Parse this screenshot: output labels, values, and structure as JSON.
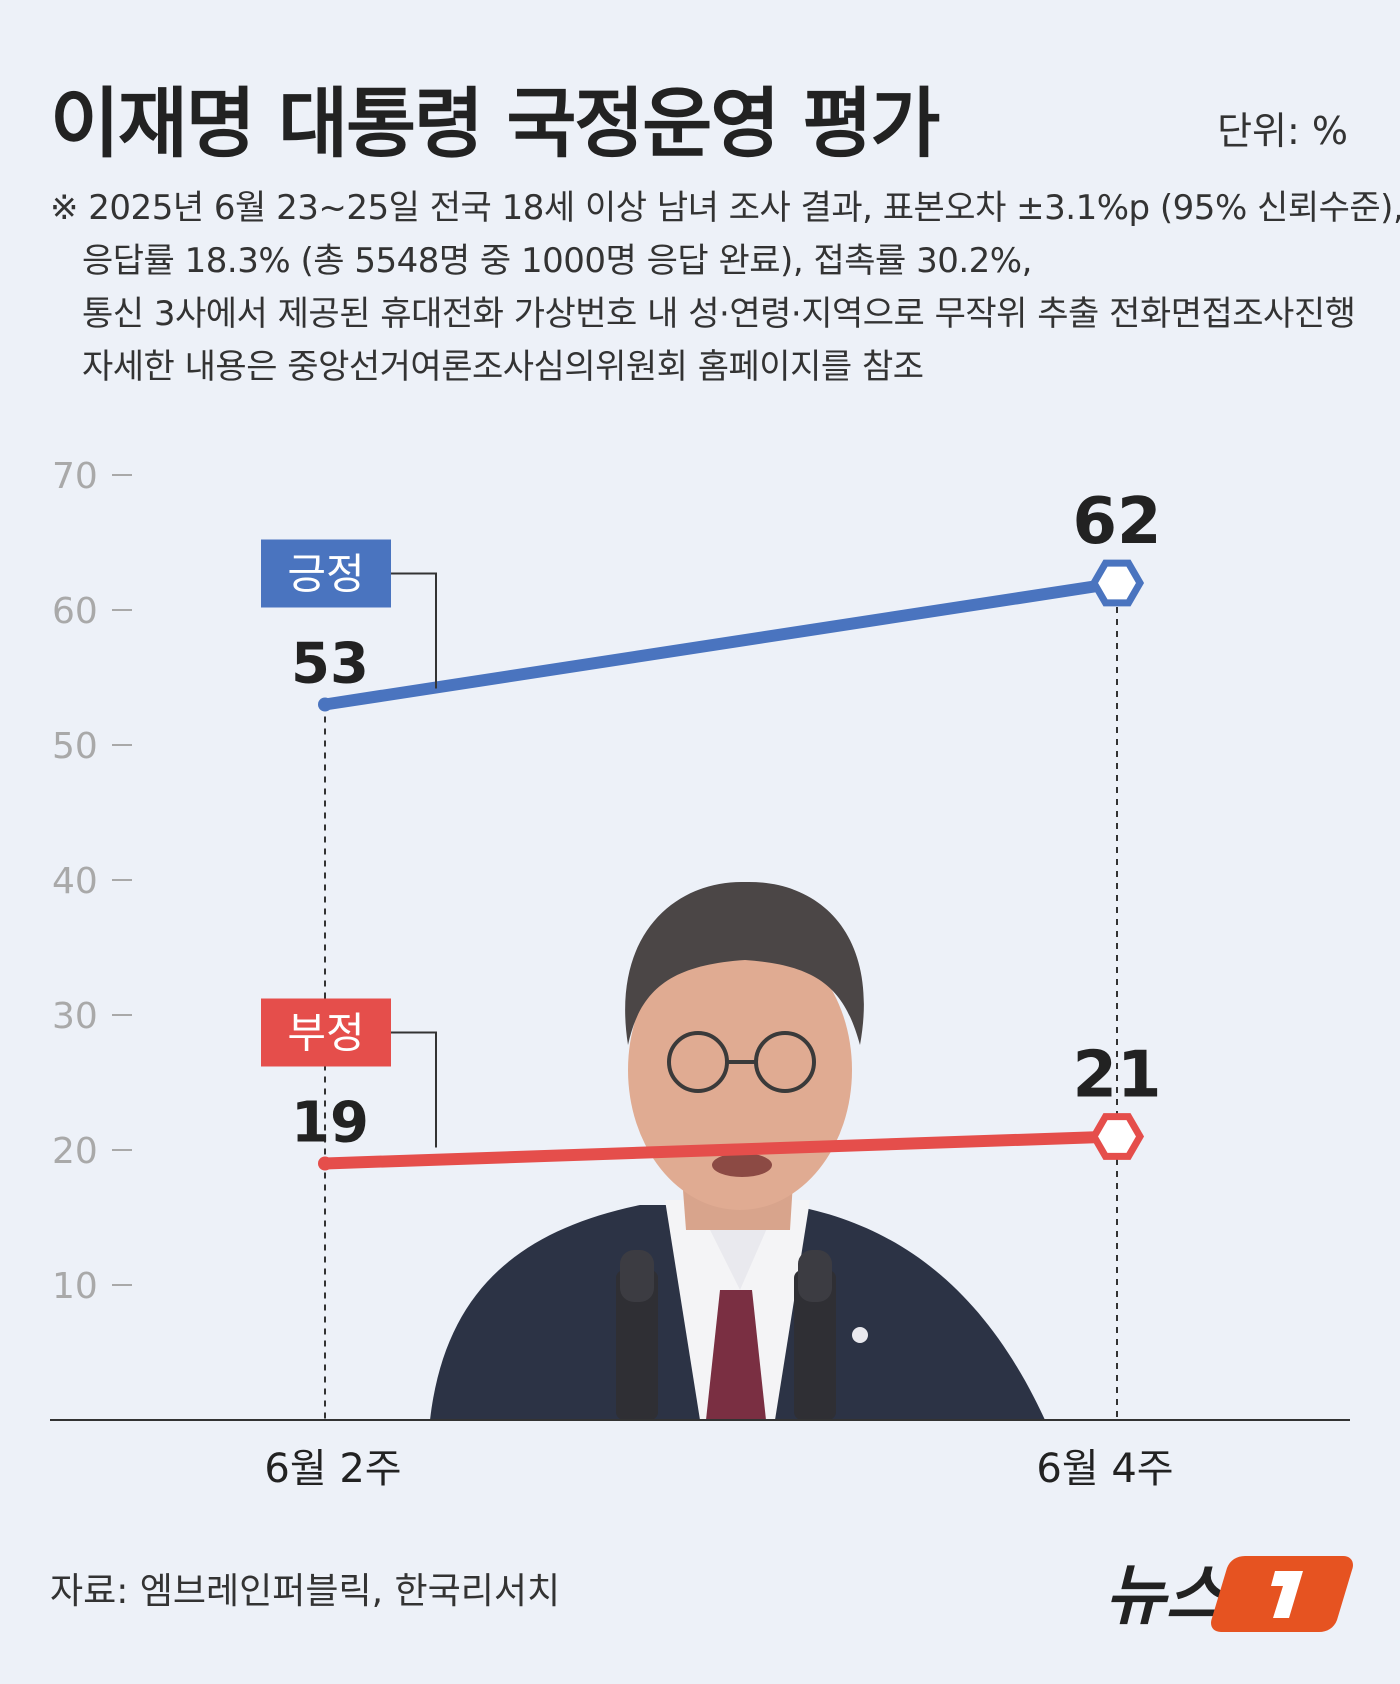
{
  "title": "이재명 대통령 국정운영 평가",
  "unit": "단위: %",
  "notes": [
    "※ 2025년 6월 23~25일 전국 18세 이상 남녀 조사 결과, 표본오차 ±3.1%p (95% 신뢰수준),",
    "응답률 18.3% (총 5548명 중 1000명 응답 완료), 접촉률 30.2%,",
    "통신 3사에서 제공된 휴대전화 가상번호 내 성·연령·지역으로 무작위 추출 전화면접조사진행",
    "자세한 내용은 중앙선거여론조사심의위원회 홈페이지를 참조"
  ],
  "source": "자료: 엠브레인퍼블릭, 한국리서치",
  "logo_text": "뉴스1",
  "chart_data": {
    "type": "line",
    "categories": [
      "6월 2주",
      "6월 4주"
    ],
    "yticks": [
      10,
      20,
      30,
      40,
      50,
      60,
      70
    ],
    "ylim": [
      0,
      70
    ],
    "grid": false,
    "series": [
      {
        "name": "긍정",
        "values": [
          53,
          62
        ],
        "color": "#4a74bf"
      },
      {
        "name": "부정",
        "values": [
          19,
          21
        ],
        "color": "#e54e4b"
      }
    ]
  }
}
